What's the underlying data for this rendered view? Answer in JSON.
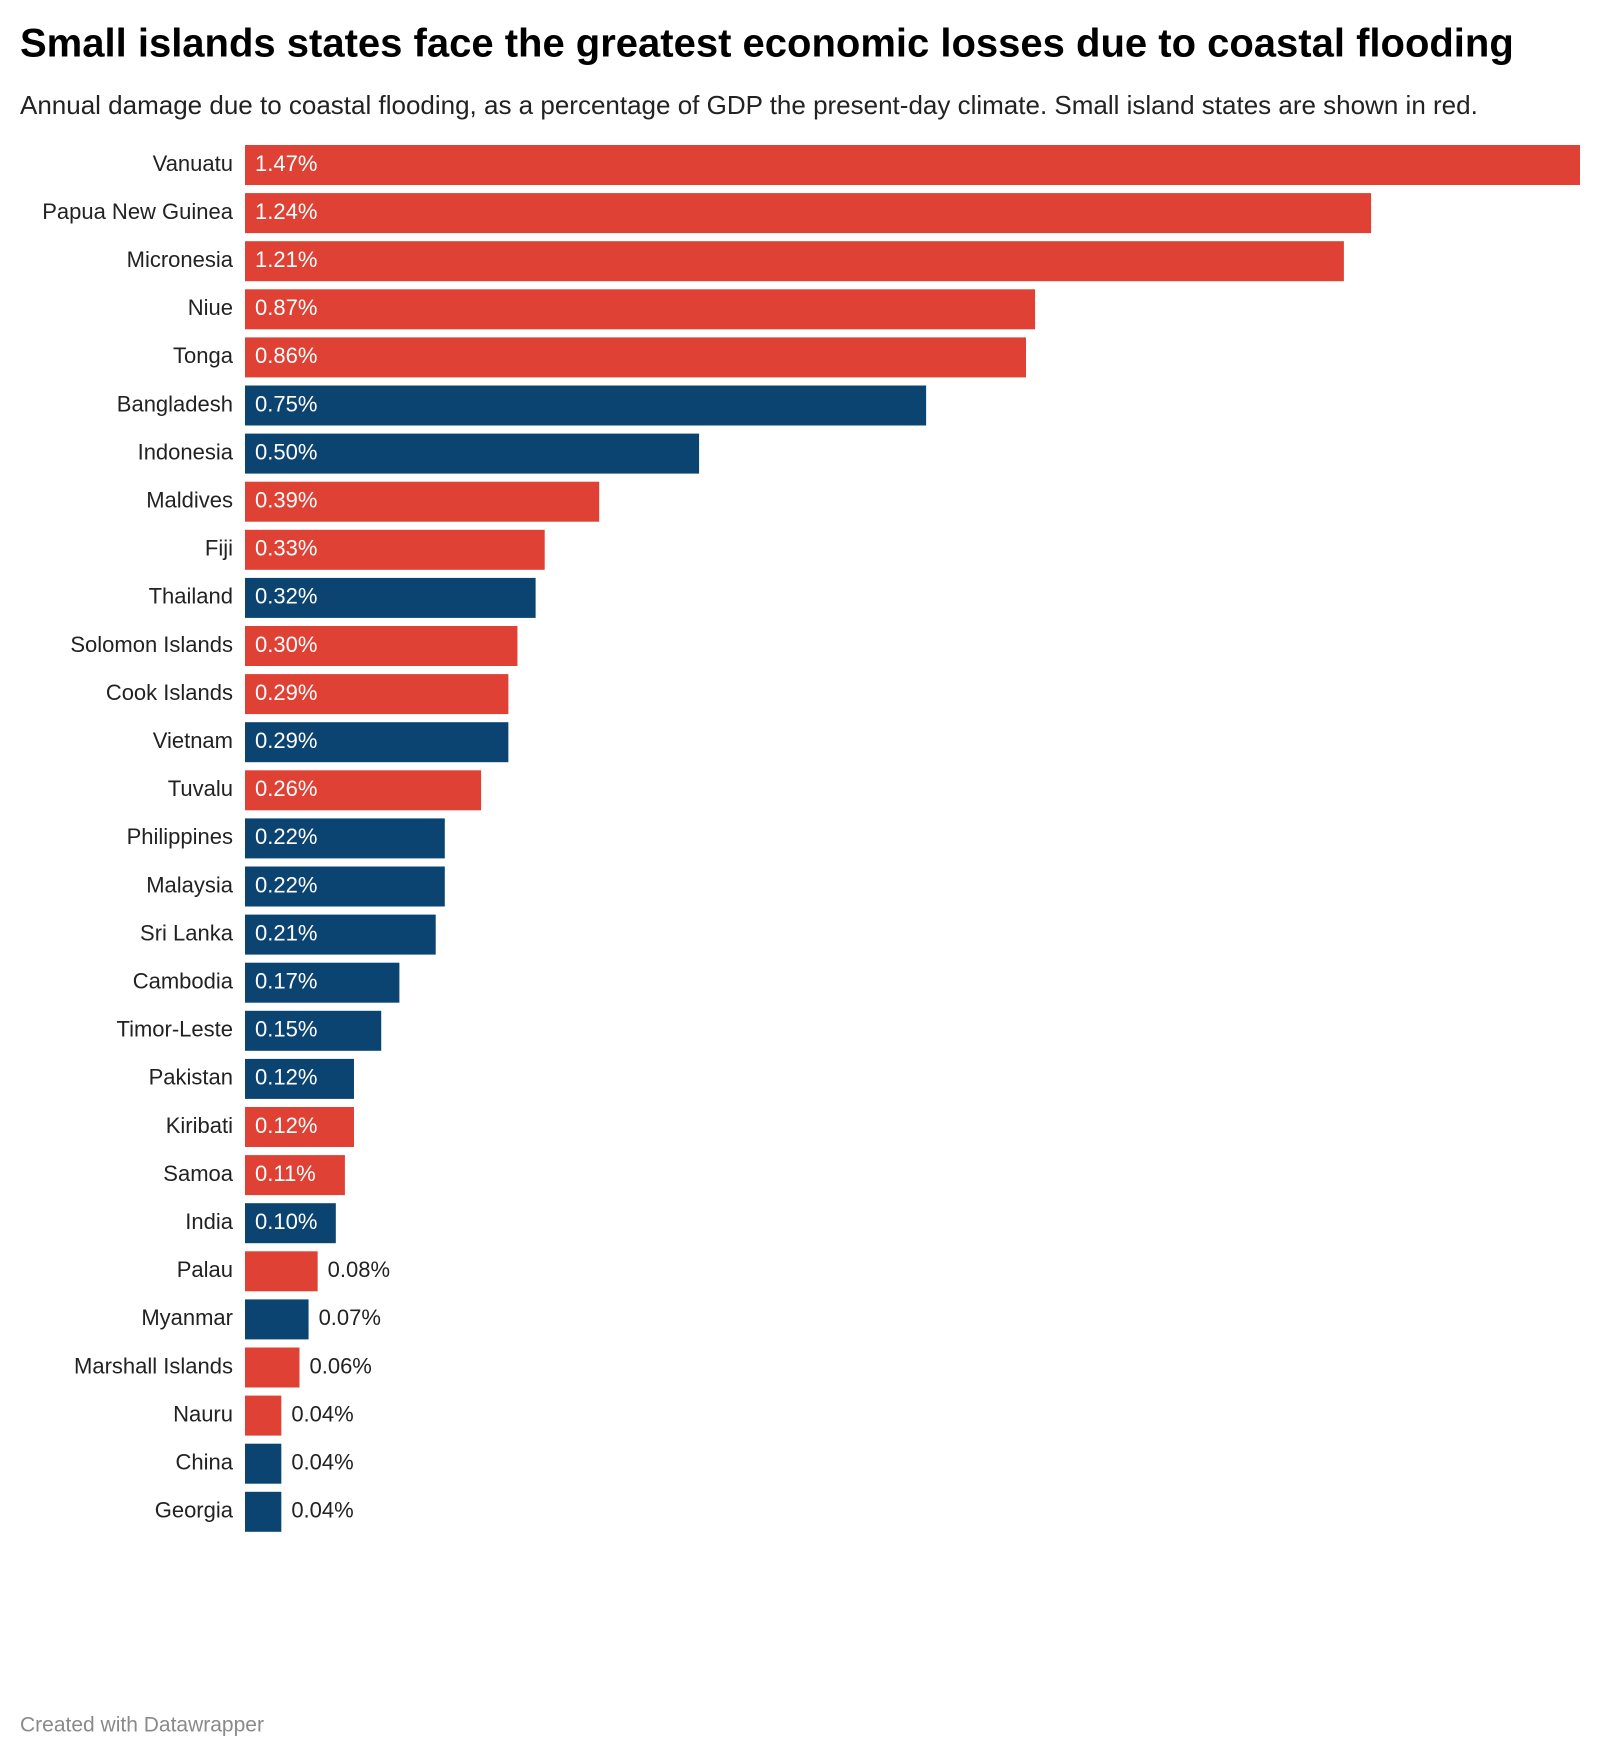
{
  "chart_data": {
    "type": "bar",
    "orientation": "horizontal",
    "title": "Small islands states face the greatest economic losses due to coastal flooding",
    "subtitle": "Annual damage due to coastal flooding, as a percentage of GDP the present-day climate. Small island states are shown in red.",
    "footer": "Created with Datawrapper",
    "categories": [
      "Vanuatu",
      "Papua New Guinea",
      "Micronesia",
      "Niue",
      "Tonga",
      "Bangladesh",
      "Indonesia",
      "Maldives",
      "Fiji",
      "Thailand",
      "Solomon Islands",
      "Cook Islands",
      "Vietnam",
      "Tuvalu",
      "Philippines",
      "Malaysia",
      "Sri Lanka",
      "Cambodia",
      "Timor-Leste",
      "Pakistan",
      "Kiribati",
      "Samoa",
      "India",
      "Palau",
      "Myanmar",
      "Marshall Islands",
      "Nauru",
      "China",
      "Georgia"
    ],
    "values": [
      1.47,
      1.24,
      1.21,
      0.87,
      0.86,
      0.75,
      0.5,
      0.39,
      0.33,
      0.32,
      0.3,
      0.29,
      0.29,
      0.26,
      0.22,
      0.22,
      0.21,
      0.17,
      0.15,
      0.12,
      0.12,
      0.11,
      0.1,
      0.08,
      0.07,
      0.06,
      0.04,
      0.04,
      0.04
    ],
    "value_labels": [
      "1.47%",
      "1.24%",
      "1.21%",
      "0.87%",
      "0.86%",
      "0.75%",
      "0.50%",
      "0.39%",
      "0.33%",
      "0.32%",
      "0.30%",
      "0.29%",
      "0.29%",
      "0.26%",
      "0.22%",
      "0.22%",
      "0.21%",
      "0.17%",
      "0.15%",
      "0.12%",
      "0.12%",
      "0.11%",
      "0.10%",
      "0.08%",
      "0.07%",
      "0.06%",
      "0.04%",
      "0.04%",
      "0.04%"
    ],
    "colors": [
      "#df4134",
      "#df4134",
      "#df4134",
      "#df4134",
      "#df4134",
      "#0b4471",
      "#0b4471",
      "#df4134",
      "#df4134",
      "#0b4471",
      "#df4134",
      "#df4134",
      "#0b4471",
      "#df4134",
      "#0b4471",
      "#0b4471",
      "#0b4471",
      "#0b4471",
      "#0b4471",
      "#0b4471",
      "#df4134",
      "#df4134",
      "#0b4471",
      "#df4134",
      "#0b4471",
      "#df4134",
      "#df4134",
      "#0b4471",
      "#0b4471"
    ]
  }
}
